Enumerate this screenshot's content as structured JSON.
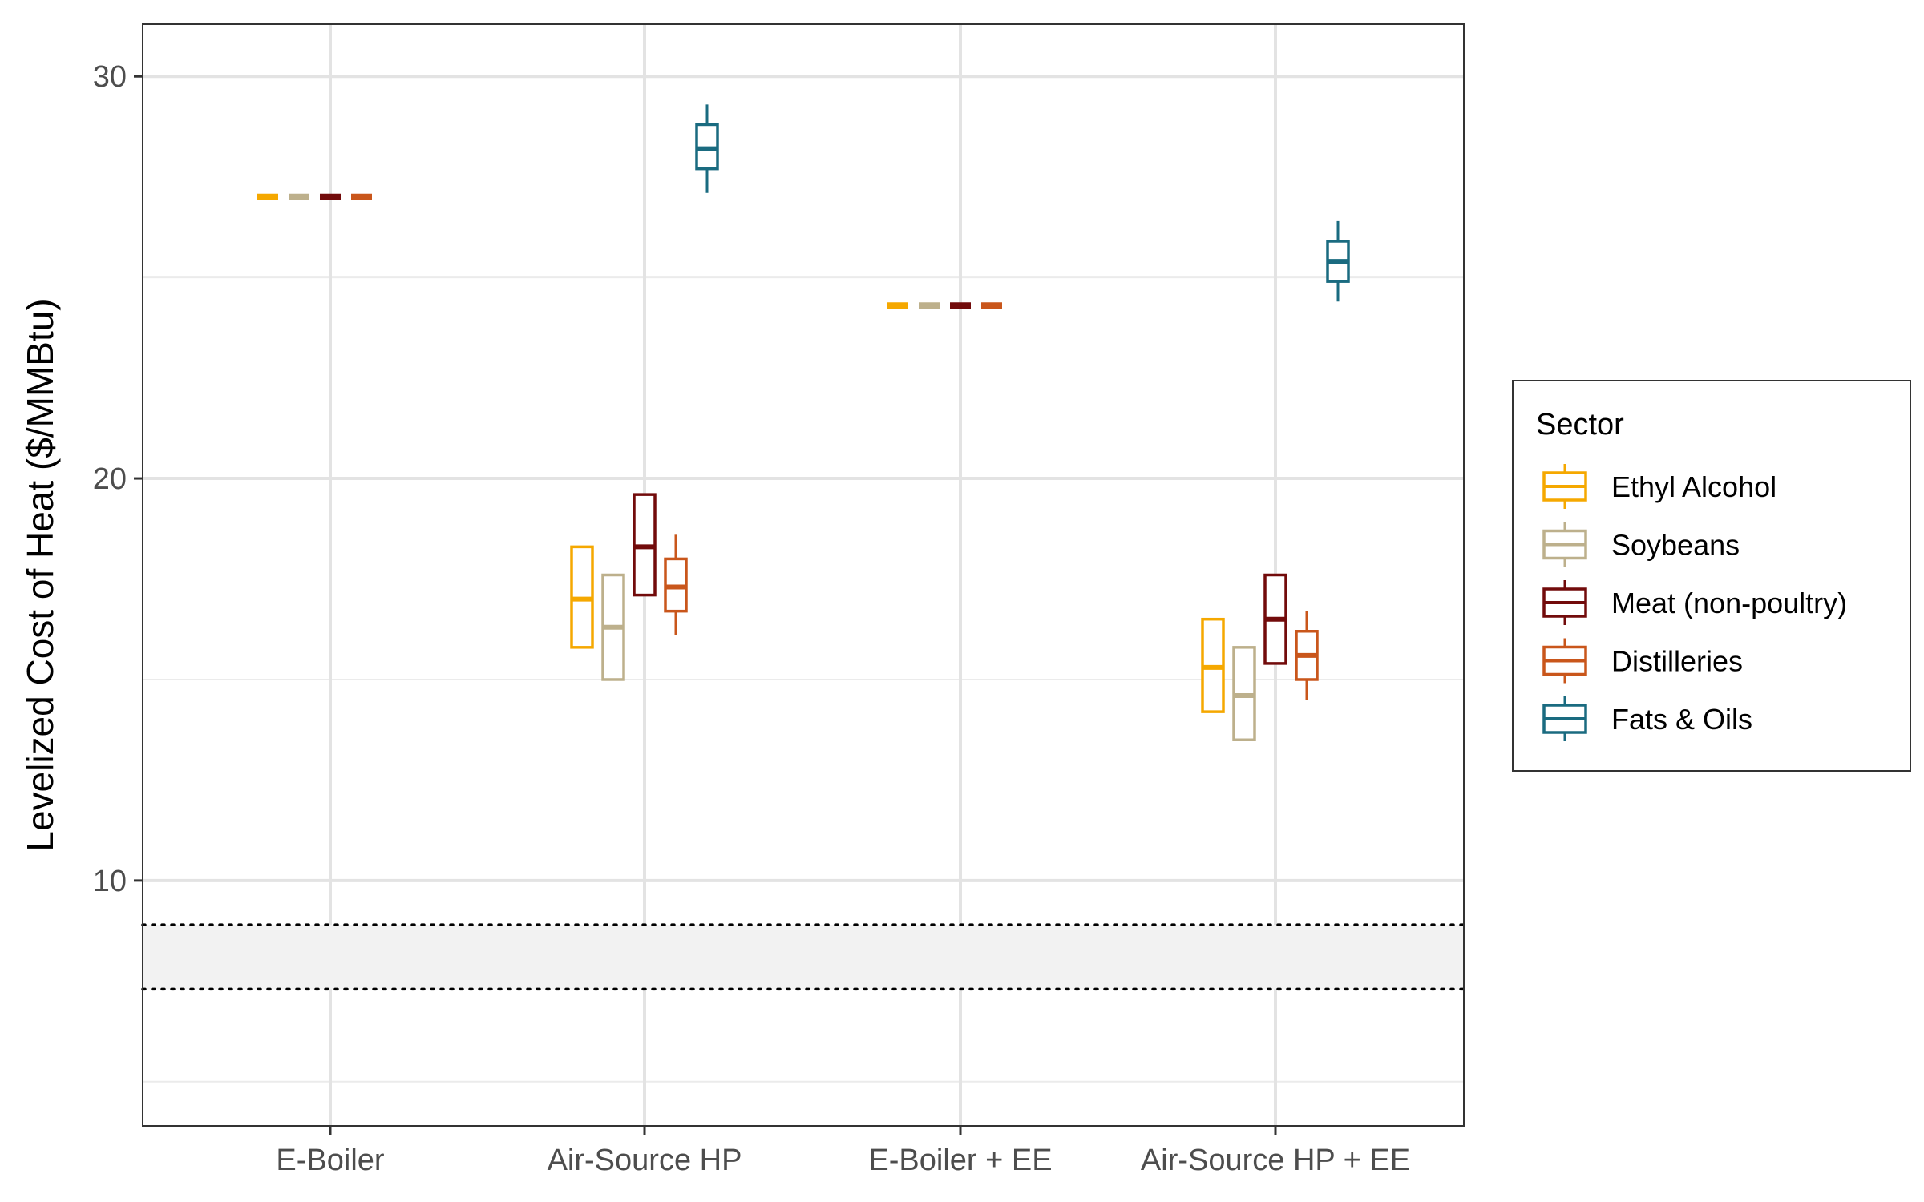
{
  "chart_data": {
    "type": "boxplot",
    "title": "",
    "xlabel": "",
    "ylabel": "Levelized Cost of Heat ($/MMBtu)",
    "ylim": [
      3.9,
      31.3
    ],
    "yticks": [
      10,
      20,
      30
    ],
    "grid": true,
    "categories": [
      "E-Boiler",
      "Air-Source HP",
      "E-Boiler + EE",
      "Air-Source HP + EE"
    ],
    "reference_band": {
      "low": 7.3,
      "high": 8.9,
      "style": "dotted bounds, light gray fill"
    },
    "legend": {
      "title": "Sector",
      "position": "right"
    },
    "series": [
      {
        "name": "Ethyl Alcohol",
        "color": "#F5A800",
        "boxes": [
          {
            "min": 27.0,
            "q1": 27.0,
            "median": 27.0,
            "q3": 27.0,
            "max": 27.0
          },
          {
            "min": 15.8,
            "q1": 15.8,
            "median": 17.0,
            "q3": 18.3,
            "max": 18.3
          },
          {
            "min": 24.3,
            "q1": 24.3,
            "median": 24.3,
            "q3": 24.3,
            "max": 24.3
          },
          {
            "min": 14.2,
            "q1": 14.2,
            "median": 15.3,
            "q3": 16.5,
            "max": 16.5
          }
        ]
      },
      {
        "name": "Soybeans",
        "color": "#BDB08C",
        "boxes": [
          {
            "min": 27.0,
            "q1": 27.0,
            "median": 27.0,
            "q3": 27.0,
            "max": 27.0
          },
          {
            "min": 15.0,
            "q1": 15.0,
            "median": 16.3,
            "q3": 17.6,
            "max": 17.6
          },
          {
            "min": 24.3,
            "q1": 24.3,
            "median": 24.3,
            "q3": 24.3,
            "max": 24.3
          },
          {
            "min": 13.5,
            "q1": 13.5,
            "median": 14.6,
            "q3": 15.8,
            "max": 15.8
          }
        ]
      },
      {
        "name": "Meat (non-poultry)",
        "color": "#720B0B",
        "boxes": [
          {
            "min": 27.0,
            "q1": 27.0,
            "median": 27.0,
            "q3": 27.0,
            "max": 27.0
          },
          {
            "min": 17.1,
            "q1": 17.1,
            "median": 18.3,
            "q3": 19.6,
            "max": 19.6
          },
          {
            "min": 24.3,
            "q1": 24.3,
            "median": 24.3,
            "q3": 24.3,
            "max": 24.3
          },
          {
            "min": 15.4,
            "q1": 15.4,
            "median": 16.5,
            "q3": 17.6,
            "max": 17.6
          }
        ]
      },
      {
        "name": "Distilleries",
        "color": "#C9561B",
        "boxes": [
          {
            "min": 27.0,
            "q1": 27.0,
            "median": 27.0,
            "q3": 27.0,
            "max": 27.0
          },
          {
            "min": 16.1,
            "q1": 16.7,
            "median": 17.3,
            "q3": 18.0,
            "max": 18.6
          },
          {
            "min": 24.3,
            "q1": 24.3,
            "median": 24.3,
            "q3": 24.3,
            "max": 24.3
          },
          {
            "min": 14.5,
            "q1": 15.0,
            "median": 15.6,
            "q3": 16.2,
            "max": 16.7
          }
        ]
      },
      {
        "name": "Fats & Oils",
        "color": "#1A6B80",
        "boxes": [
          {
            "min": 27.1,
            "q1": 27.7,
            "median": 28.2,
            "q3": 28.8,
            "max": 29.3
          },
          {
            "min": 24.4,
            "q1": 24.9,
            "median": 25.4,
            "q3": 25.9,
            "max": 26.4
          }
        ],
        "box_categories": [
          "Air-Source HP",
          "Air-Source HP + EE"
        ]
      }
    ]
  }
}
